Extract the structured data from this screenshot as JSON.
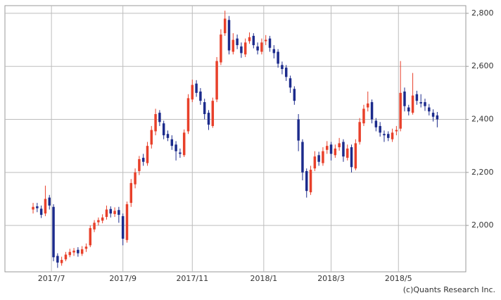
{
  "chart_data": {
    "type": "candlestick",
    "up_color": "#e8402a",
    "down_color": "#1c2b8c",
    "grid": true,
    "footer": "(c)Quants Research Inc.",
    "xlim": [
      -6.9,
      106
    ],
    "xticks": [
      {
        "value": 4.5,
        "label": "2017/7"
      },
      {
        "value": 22,
        "label": "2017/9"
      },
      {
        "value": 39,
        "label": "2017/11"
      },
      {
        "value": 56.5,
        "label": "2018/1"
      },
      {
        "value": 73,
        "label": "2018/3"
      },
      {
        "value": 89.5,
        "label": "2018/5"
      }
    ],
    "ylim": [
      1825,
      2829
    ],
    "yticks": [
      {
        "value": 2000,
        "label": "2,000"
      },
      {
        "value": 2200,
        "label": "2,200"
      },
      {
        "value": 2400,
        "label": "2,400"
      },
      {
        "value": 2600,
        "label": "2,600"
      },
      {
        "value": 2800,
        "label": "2,800"
      }
    ],
    "open": [
      2060,
      2072,
      2063,
      2045,
      2105,
      2070,
      1885,
      1858,
      1872,
      1888,
      1898,
      1908,
      1893,
      1912,
      1925,
      1985,
      2012,
      2018,
      2032,
      2062,
      2043,
      2058,
      2035,
      1945,
      2085,
      2155,
      2205,
      2255,
      2235,
      2305,
      2355,
      2425,
      2385,
      2345,
      2325,
      2305,
      2275,
      2265,
      2355,
      2475,
      2535,
      2505,
      2465,
      2425,
      2375,
      2475,
      2615,
      2725,
      2775,
      2655,
      2705,
      2675,
      2645,
      2695,
      2715,
      2675,
      2655,
      2695,
      2705,
      2665,
      2655,
      2605,
      2595,
      2555,
      2515,
      2400,
      2315,
      2205,
      2125,
      2215,
      2265,
      2235,
      2285,
      2305,
      2265,
      2295,
      2315,
      2255,
      2295,
      2215,
      2315,
      2385,
      2445,
      2465,
      2395,
      2375,
      2345,
      2345,
      2325,
      2355,
      2365,
      2505,
      2445,
      2425,
      2495,
      2465,
      2465,
      2445,
      2425,
      2415
    ],
    "high": [
      2085,
      2085,
      2075,
      2150,
      2115,
      2080,
      1895,
      1882,
      1900,
      1912,
      1915,
      1918,
      1922,
      1932,
      2000,
      2020,
      2030,
      2042,
      2075,
      2072,
      2068,
      2070,
      2045,
      2090,
      2175,
      2215,
      2262,
      2270,
      2315,
      2375,
      2440,
      2435,
      2395,
      2358,
      2340,
      2318,
      2290,
      2362,
      2495,
      2550,
      2548,
      2518,
      2478,
      2435,
      2482,
      2635,
      2740,
      2810,
      2790,
      2725,
      2720,
      2690,
      2705,
      2728,
      2725,
      2690,
      2705,
      2718,
      2715,
      2680,
      2665,
      2618,
      2605,
      2565,
      2525,
      2420,
      2325,
      2215,
      2225,
      2280,
      2278,
      2295,
      2318,
      2315,
      2305,
      2330,
      2325,
      2305,
      2305,
      2325,
      2405,
      2455,
      2505,
      2475,
      2405,
      2390,
      2358,
      2355,
      2365,
      2375,
      2620,
      2520,
      2455,
      2575,
      2508,
      2495,
      2478,
      2458,
      2438,
      2428
    ],
    "low": [
      2045,
      2050,
      2028,
      2035,
      2060,
      1865,
      1840,
      1848,
      1865,
      1880,
      1885,
      1882,
      1885,
      1900,
      1918,
      1975,
      2000,
      2008,
      2022,
      2030,
      2032,
      2010,
      1925,
      1935,
      2070,
      2140,
      2190,
      2225,
      2225,
      2290,
      2340,
      2375,
      2325,
      2318,
      2285,
      2245,
      2255,
      2258,
      2345,
      2465,
      2485,
      2455,
      2400,
      2360,
      2368,
      2465,
      2605,
      2715,
      2645,
      2645,
      2665,
      2632,
      2635,
      2685,
      2668,
      2645,
      2645,
      2680,
      2655,
      2630,
      2595,
      2570,
      2545,
      2500,
      2455,
      2280,
      2170,
      2105,
      2115,
      2205,
      2225,
      2225,
      2270,
      2245,
      2255,
      2282,
      2240,
      2245,
      2200,
      2208,
      2305,
      2375,
      2430,
      2385,
      2355,
      2335,
      2315,
      2318,
      2315,
      2340,
      2355,
      2430,
      2415,
      2418,
      2455,
      2445,
      2432,
      2415,
      2392,
      2370
    ],
    "close": [
      2070,
      2065,
      2040,
      2100,
      2075,
      1880,
      1860,
      1870,
      1890,
      1900,
      1905,
      1895,
      1910,
      1920,
      1990,
      2010,
      2020,
      2030,
      2060,
      2045,
      2055,
      2040,
      1950,
      2080,
      2160,
      2200,
      2250,
      2240,
      2300,
      2360,
      2420,
      2390,
      2340,
      2330,
      2300,
      2280,
      2270,
      2350,
      2480,
      2530,
      2500,
      2470,
      2420,
      2380,
      2470,
      2620,
      2720,
      2780,
      2660,
      2700,
      2680,
      2650,
      2690,
      2710,
      2680,
      2660,
      2690,
      2700,
      2670,
      2650,
      2610,
      2590,
      2560,
      2520,
      2470,
      2320,
      2200,
      2130,
      2210,
      2260,
      2240,
      2280,
      2300,
      2270,
      2290,
      2310,
      2260,
      2290,
      2220,
      2310,
      2390,
      2440,
      2460,
      2400,
      2370,
      2350,
      2340,
      2330,
      2350,
      2360,
      2500,
      2450,
      2430,
      2490,
      2470,
      2460,
      2450,
      2430,
      2410,
      2400
    ]
  }
}
